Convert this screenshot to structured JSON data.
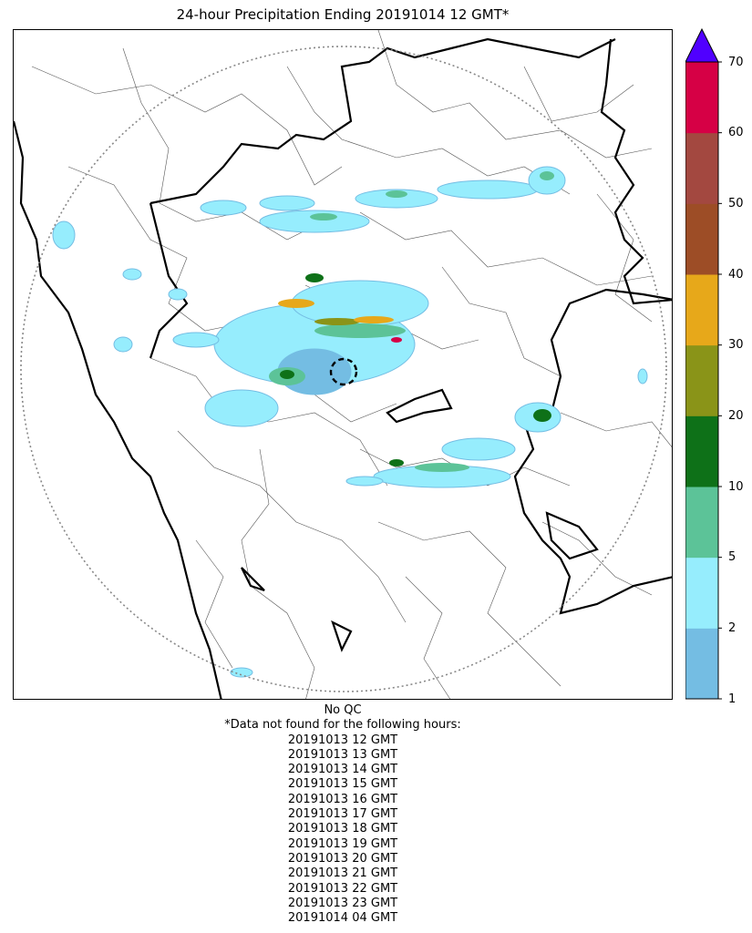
{
  "title": "24-hour Precipitation Ending 20191014 12 GMT*",
  "colorbar": {
    "extend": "max",
    "levels": [
      1,
      2,
      5,
      10,
      20,
      30,
      40,
      50,
      60,
      70
    ],
    "tick_labels": [
      "1",
      "2",
      "5",
      "10",
      "20",
      "30",
      "40",
      "50",
      "60",
      "70"
    ],
    "colors": [
      "#74bde3",
      "#96edfd",
      "#5cc398",
      "#0e7118",
      "#8a9418",
      "#e7a81a",
      "#9d4d26",
      "#a34840",
      "#d60045"
    ],
    "over_color": "#5000ff"
  },
  "map": {
    "range_ring": "dotted",
    "radar_site_marker": "dashed circle",
    "boundaries": [
      "coastline",
      "state borders",
      "district borders"
    ]
  },
  "footer": {
    "qc_status": "No QC",
    "missing_note": "*Data not found for the following hours:",
    "missing_hours": [
      "20191013 12 GMT",
      "20191013 13 GMT",
      "20191013 14 GMT",
      "20191013 15 GMT",
      "20191013 16 GMT",
      "20191013 17 GMT",
      "20191013 18 GMT",
      "20191013 19 GMT",
      "20191013 20 GMT",
      "20191013 21 GMT",
      "20191013 22 GMT",
      "20191013 23 GMT",
      "20191014 04 GMT"
    ]
  }
}
